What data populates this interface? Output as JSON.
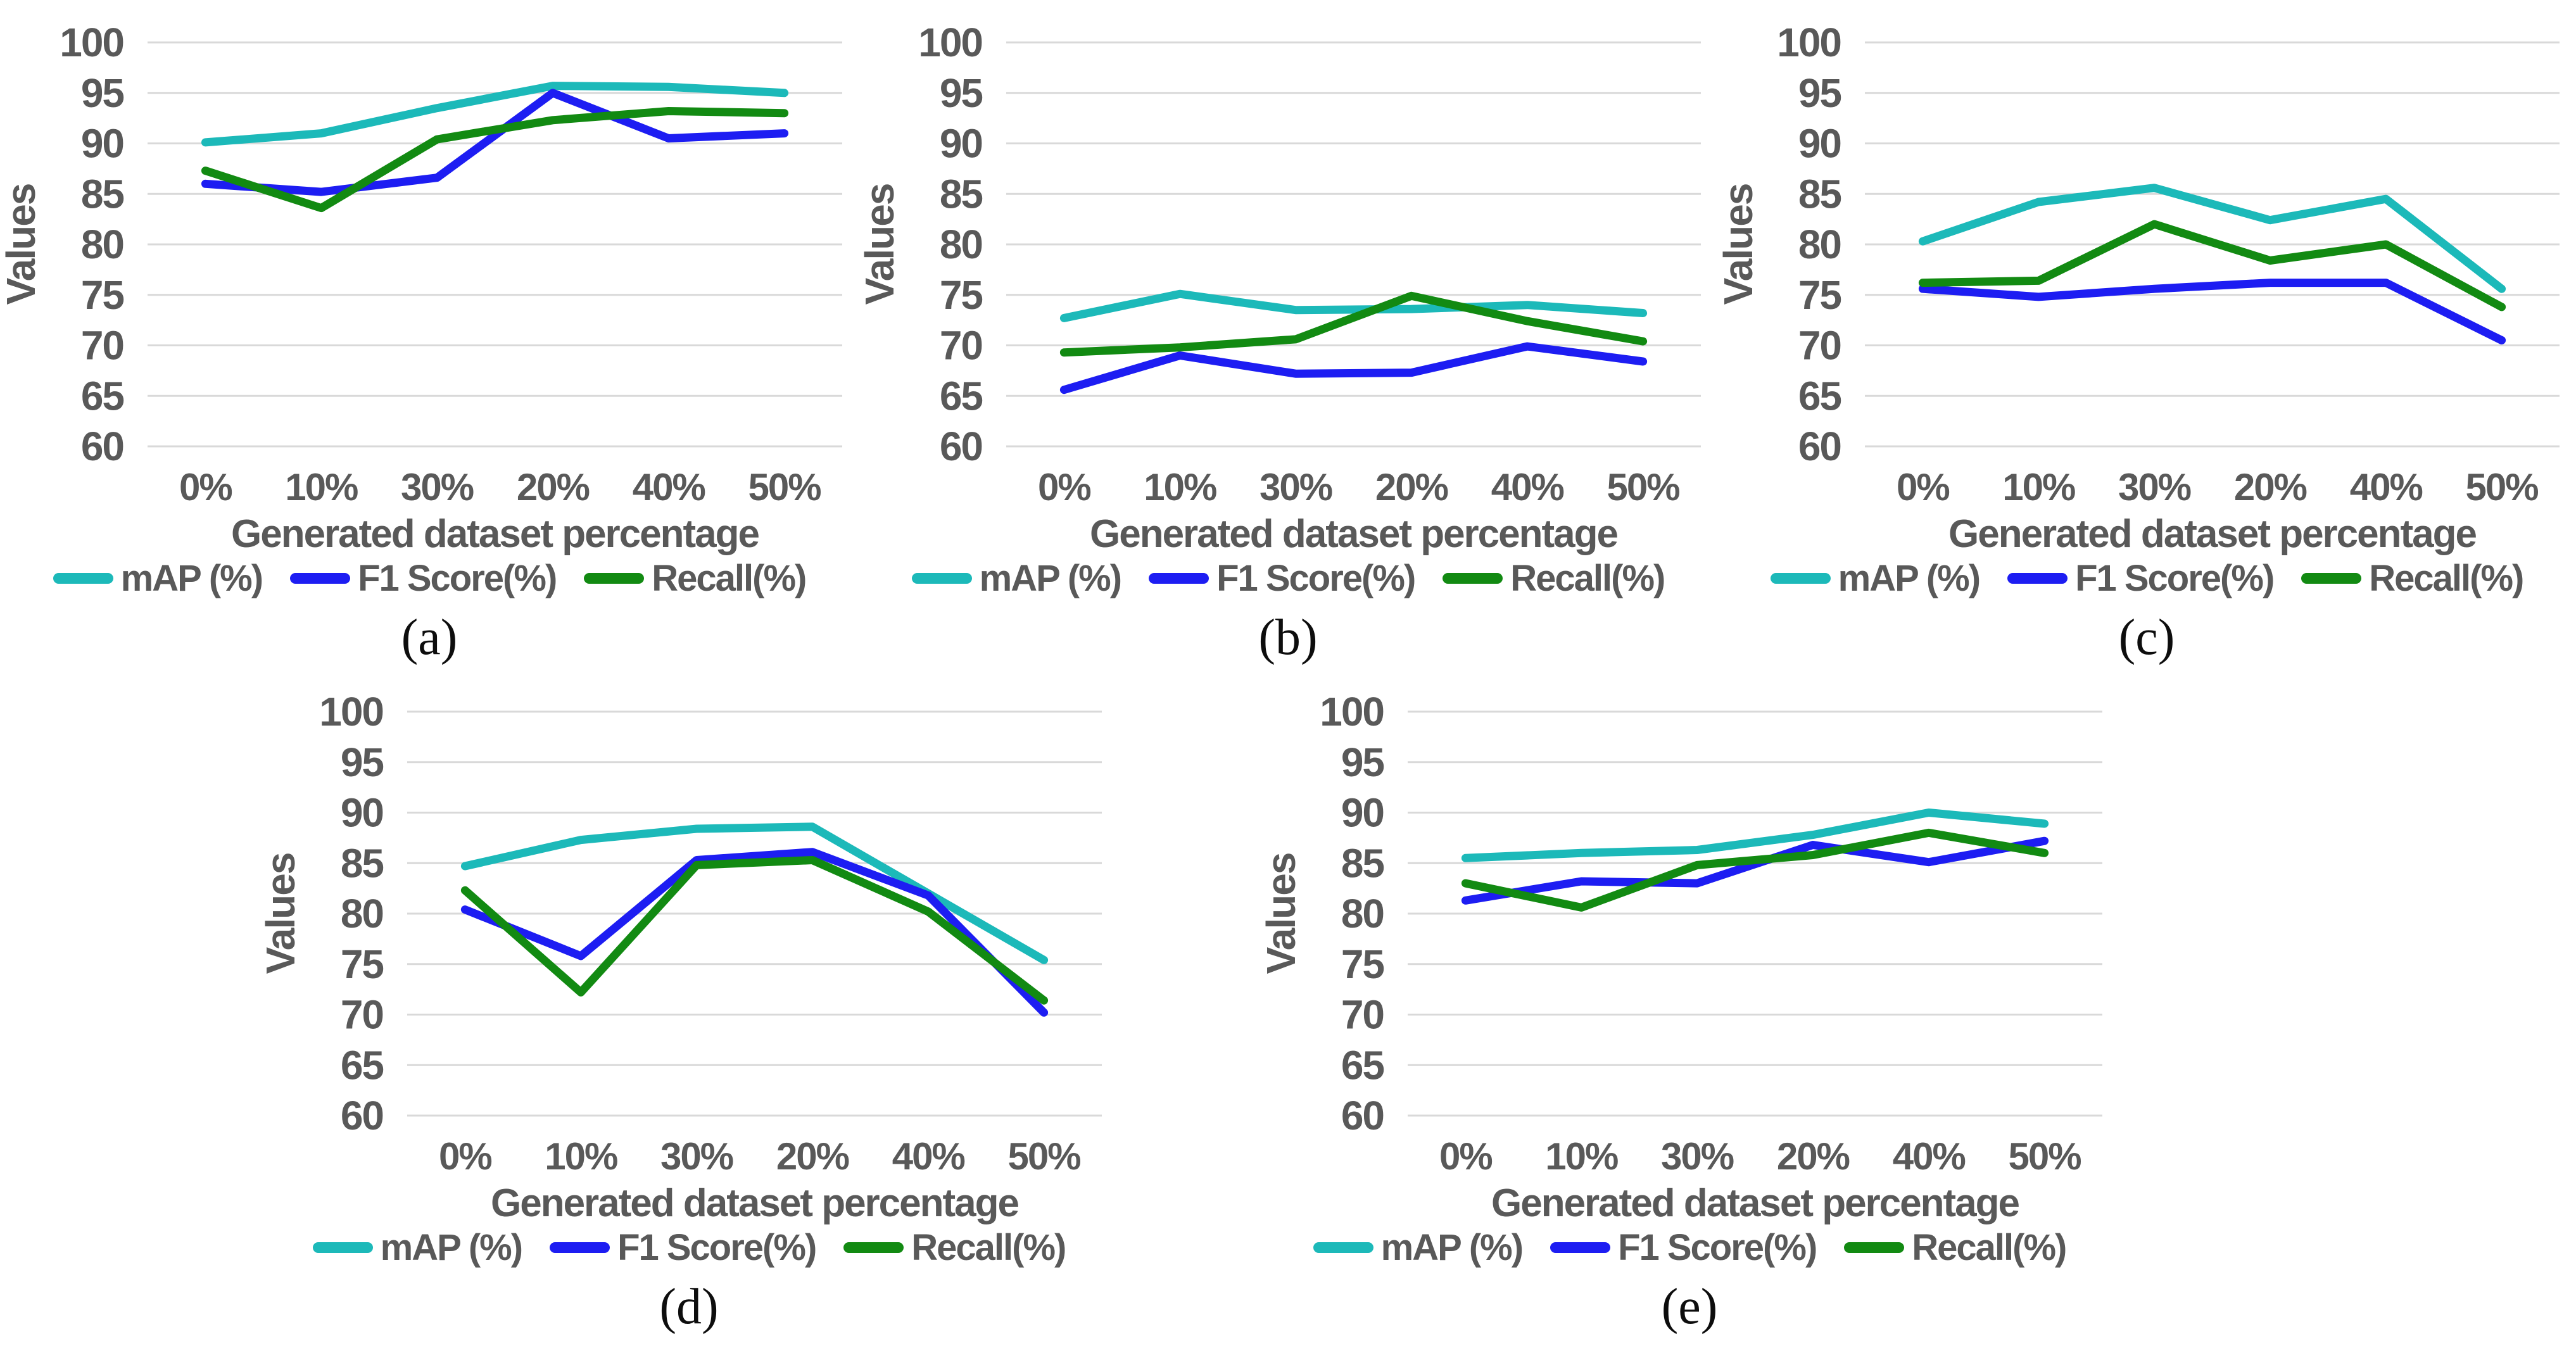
{
  "figure": {
    "background": "#ffffff",
    "text_color": "#595959",
    "gridline_color": "#d9d9d9",
    "series_colors": {
      "map": "#1cb9b9",
      "f1": "#1d1df2",
      "recall": "#128a12"
    }
  },
  "chart_data": [
    {
      "id": "a",
      "caption": "(a)",
      "type": "line",
      "title": "",
      "xlabel": "Generated dataset percentage",
      "ylabel": "Values",
      "ylim": [
        60,
        100
      ],
      "yticks": [
        "100",
        "95",
        "90",
        "85",
        "80",
        "75",
        "70",
        "65",
        "60"
      ],
      "grid": "horizontal",
      "legend_position": "bottom",
      "categories": [
        "0%",
        "10%",
        "30%",
        "20%",
        "40%",
        "50%"
      ],
      "series": [
        {
          "name": "mAP (%)",
          "color": "#1cb9b9",
          "values": [
            90.1,
            91.0,
            93.5,
            95.7,
            95.6,
            95.0
          ]
        },
        {
          "name": "F1 Score(%)",
          "color": "#1d1df2",
          "values": [
            86.0,
            85.2,
            86.6,
            95.0,
            90.5,
            91.0
          ]
        },
        {
          "name": "Recall(%)",
          "color": "#128a12",
          "values": [
            87.3,
            83.6,
            90.4,
            92.3,
            93.2,
            93.0
          ]
        }
      ]
    },
    {
      "id": "b",
      "caption": "(b)",
      "type": "line",
      "title": "",
      "xlabel": "Generated dataset percentage",
      "ylabel": "Values",
      "ylim": [
        60,
        100
      ],
      "yticks": [
        "100",
        "95",
        "90",
        "85",
        "80",
        "75",
        "70",
        "65",
        "60"
      ],
      "grid": "horizontal",
      "legend_position": "bottom",
      "categories": [
        "0%",
        "10%",
        "30%",
        "20%",
        "40%",
        "50%"
      ],
      "series": [
        {
          "name": "mAP (%)",
          "color": "#1cb9b9",
          "values": [
            72.7,
            75.1,
            73.5,
            73.6,
            74.0,
            73.2
          ]
        },
        {
          "name": "F1 Score(%)",
          "color": "#1d1df2",
          "values": [
            65.6,
            69.0,
            67.2,
            67.3,
            69.9,
            68.4
          ]
        },
        {
          "name": "Recall(%)",
          "color": "#128a12",
          "values": [
            69.3,
            69.8,
            70.6,
            74.9,
            72.4,
            70.4
          ]
        }
      ]
    },
    {
      "id": "c",
      "caption": "(c)",
      "type": "line",
      "title": "",
      "xlabel": "Generated dataset percentage",
      "ylabel": "Values",
      "ylim": [
        60,
        100
      ],
      "yticks": [
        "100",
        "95",
        "90",
        "85",
        "80",
        "75",
        "70",
        "65",
        "60"
      ],
      "grid": "horizontal",
      "legend_position": "bottom",
      "categories": [
        "0%",
        "10%",
        "30%",
        "20%",
        "40%",
        "50%"
      ],
      "series": [
        {
          "name": "mAP (%)",
          "color": "#1cb9b9",
          "values": [
            80.3,
            84.2,
            85.6,
            82.4,
            84.5,
            75.6
          ]
        },
        {
          "name": "F1 Score(%)",
          "color": "#1d1df2",
          "values": [
            75.6,
            74.8,
            75.6,
            76.2,
            76.2,
            70.5
          ]
        },
        {
          "name": "Recall(%)",
          "color": "#128a12",
          "values": [
            76.2,
            76.4,
            82.0,
            78.4,
            80.0,
            73.8
          ]
        }
      ]
    },
    {
      "id": "d",
      "caption": "(d)",
      "type": "line",
      "title": "",
      "xlabel": "Generated dataset percentage",
      "ylabel": "Values",
      "ylim": [
        60,
        100
      ],
      "yticks": [
        "100",
        "95",
        "90",
        "85",
        "80",
        "75",
        "70",
        "65",
        "60"
      ],
      "grid": "horizontal",
      "legend_position": "bottom",
      "categories": [
        "0%",
        "10%",
        "30%",
        "20%",
        "40%",
        "50%"
      ],
      "series": [
        {
          "name": "mAP (%)",
          "color": "#1cb9b9",
          "values": [
            84.7,
            87.3,
            88.4,
            88.6,
            82.0,
            75.4
          ]
        },
        {
          "name": "F1 Score(%)",
          "color": "#1d1df2",
          "values": [
            80.4,
            75.8,
            85.3,
            86.1,
            81.8,
            70.2
          ]
        },
        {
          "name": "Recall(%)",
          "color": "#128a12",
          "values": [
            82.3,
            72.2,
            84.8,
            85.3,
            80.2,
            71.4
          ]
        }
      ]
    },
    {
      "id": "e",
      "caption": "(e)",
      "type": "line",
      "title": "",
      "xlabel": "Generated dataset percentage",
      "ylabel": "Values",
      "ylim": [
        60,
        100
      ],
      "yticks": [
        "100",
        "95",
        "90",
        "85",
        "80",
        "75",
        "70",
        "65",
        "60"
      ],
      "grid": "horizontal",
      "legend_position": "bottom",
      "categories": [
        "0%",
        "10%",
        "30%",
        "20%",
        "40%",
        "50%"
      ],
      "series": [
        {
          "name": "mAP (%)",
          "color": "#1cb9b9",
          "values": [
            85.5,
            86.0,
            86.3,
            87.8,
            90.0,
            88.9
          ]
        },
        {
          "name": "F1 Score(%)",
          "color": "#1d1df2",
          "values": [
            81.3,
            83.2,
            83.0,
            86.8,
            85.1,
            87.2
          ]
        },
        {
          "name": "Recall(%)",
          "color": "#128a12",
          "values": [
            83.0,
            80.6,
            84.8,
            85.8,
            88.0,
            86.0
          ]
        }
      ]
    }
  ]
}
